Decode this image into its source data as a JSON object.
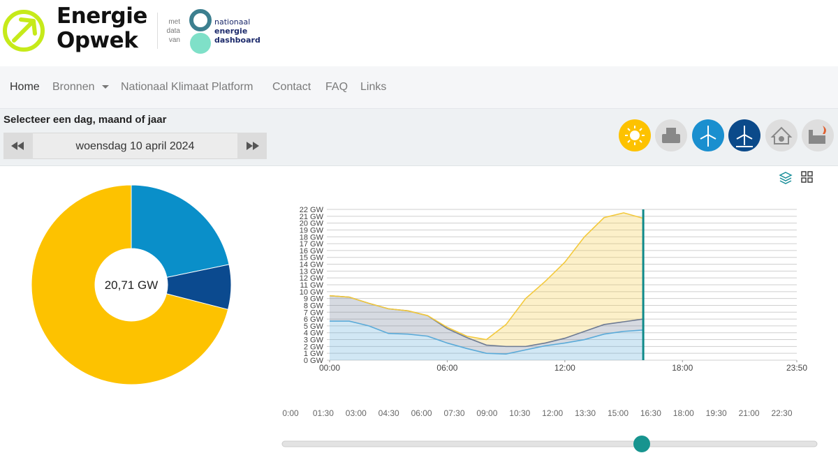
{
  "header": {
    "logo_line1": "Energie",
    "logo_line2": "Opwek",
    "attribution": [
      "met",
      "data",
      "van"
    ],
    "partner": [
      "nationaal",
      "energie",
      "dashboard"
    ]
  },
  "nav": {
    "items": [
      "Home",
      "Bronnen",
      "Nationaal Klimaat Platform",
      "Contact",
      "FAQ",
      "Links"
    ]
  },
  "date_selector": {
    "prompt": "Selecteer een dag, maand of jaar",
    "date": "woensdag 10 april 2024"
  },
  "chart_data": [
    {
      "type": "pie",
      "center_label": "20,71 GW",
      "values": [
        4.5,
        1.5,
        14.7
      ],
      "colors": [
        "#0a8fc9",
        "#0b4a8f",
        "#fdc200"
      ]
    },
    {
      "type": "area",
      "stacked": true,
      "grid": true,
      "x": [
        0,
        1,
        2,
        3,
        4,
        5,
        6,
        7,
        8,
        9,
        10,
        11,
        12,
        13,
        14,
        15,
        16
      ],
      "xlim": [
        0,
        23.8333
      ],
      "xticks": [
        {
          "value": 0,
          "label": "00:00"
        },
        {
          "value": 6,
          "label": "06:00"
        },
        {
          "value": 12,
          "label": "12:00"
        },
        {
          "value": 18,
          "label": "18:00"
        },
        {
          "value": 23.8333,
          "label": "23:50"
        }
      ],
      "ylim": [
        0,
        22
      ],
      "yticks": [
        {
          "value": 0,
          "label": "0 GW"
        },
        {
          "value": 1,
          "label": "1 GW"
        },
        {
          "value": 2,
          "label": "2 GW"
        },
        {
          "value": 3,
          "label": "3 GW"
        },
        {
          "value": 4,
          "label": "4 GW"
        },
        {
          "value": 5,
          "label": "5 GW"
        },
        {
          "value": 6,
          "label": "6 GW"
        },
        {
          "value": 7,
          "label": "7 GW"
        },
        {
          "value": 8,
          "label": "8 GW"
        },
        {
          "value": 9,
          "label": "9 GW"
        },
        {
          "value": 10,
          "label": "10 GW"
        },
        {
          "value": 11,
          "label": "11 GW"
        },
        {
          "value": 12,
          "label": "12 GW"
        },
        {
          "value": 13,
          "label": "13 GW"
        },
        {
          "value": 14,
          "label": "14 GW"
        },
        {
          "value": 15,
          "label": "15 GW"
        },
        {
          "value": 16,
          "label": "16 GW"
        },
        {
          "value": 17,
          "label": "17 GW"
        },
        {
          "value": 18,
          "label": "18 GW"
        },
        {
          "value": 19,
          "label": "19 GW"
        },
        {
          "value": 20,
          "label": "20 GW"
        },
        {
          "value": 21,
          "label": "21 GW"
        },
        {
          "value": 22,
          "label": "22 GW"
        }
      ],
      "cursor_x": 16,
      "series": [
        {
          "color": "#5aaad8",
          "values": [
            5.7,
            5.7,
            5.0,
            3.9,
            3.8,
            3.5,
            2.5,
            1.7,
            1.0,
            0.9,
            1.5,
            2.1,
            2.5,
            3.0,
            3.8,
            4.2,
            4.4
          ]
        },
        {
          "color": "#6d7a92",
          "values": [
            3.7,
            3.5,
            3.3,
            3.6,
            3.4,
            3.0,
            2.1,
            1.6,
            1.2,
            1.1,
            0.5,
            0.4,
            0.7,
            1.2,
            1.4,
            1.4,
            1.6
          ]
        },
        {
          "color": "#f3c93c",
          "values": [
            0,
            0,
            0,
            0,
            0,
            0,
            0.2,
            0.2,
            0.8,
            3.2,
            7.0,
            9.0,
            11.1,
            13.8,
            15.6,
            15.9,
            14.7
          ]
        }
      ]
    }
  ],
  "time_slider": {
    "labels": [
      "0:00",
      "01:30",
      "03:00",
      "04:30",
      "06:00",
      "07:30",
      "09:00",
      "10:30",
      "12:00",
      "13:30",
      "15:00",
      "16:30",
      "18:00",
      "19:30",
      "21:00",
      "22:30"
    ]
  }
}
